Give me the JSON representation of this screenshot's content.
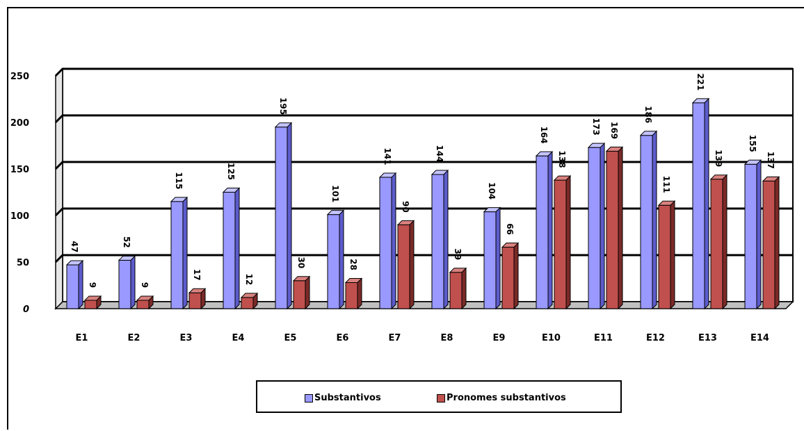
{
  "chart_data": {
    "type": "bar",
    "categories": [
      "E1",
      "E2",
      "E3",
      "E4",
      "E5",
      "E6",
      "E7",
      "E8",
      "E9",
      "E10",
      "E11",
      "E12",
      "E13",
      "E14"
    ],
    "series": [
      {
        "name": "Substantivos",
        "values": [
          47,
          52,
          115,
          125,
          195,
          101,
          141,
          144,
          104,
          164,
          173,
          186,
          221,
          155
        ],
        "labels": [
          "47",
          "52",
          "115",
          "125",
          "195",
          "101",
          "141",
          "144",
          "104",
          "164",
          "173",
          "186",
          "221",
          "155"
        ]
      },
      {
        "name": "Pronomes substantivos",
        "values": [
          9,
          9,
          17,
          12,
          30,
          28,
          90,
          39,
          66,
          138,
          169,
          111,
          139,
          137
        ],
        "labels": [
          "9",
          "9",
          "17",
          "12",
          "30",
          "28",
          "90",
          "39",
          "66",
          "138",
          "169",
          "111",
          "139",
          "137"
        ]
      }
    ],
    "yticks": [
      0,
      50,
      100,
      150,
      200,
      250
    ],
    "ylim": [
      0,
      250
    ],
    "legend": "bottom",
    "grid": true,
    "colors": {
      "Substantivos": "#9999ff",
      "Pronomes substantivos": "#c0504d"
    }
  }
}
